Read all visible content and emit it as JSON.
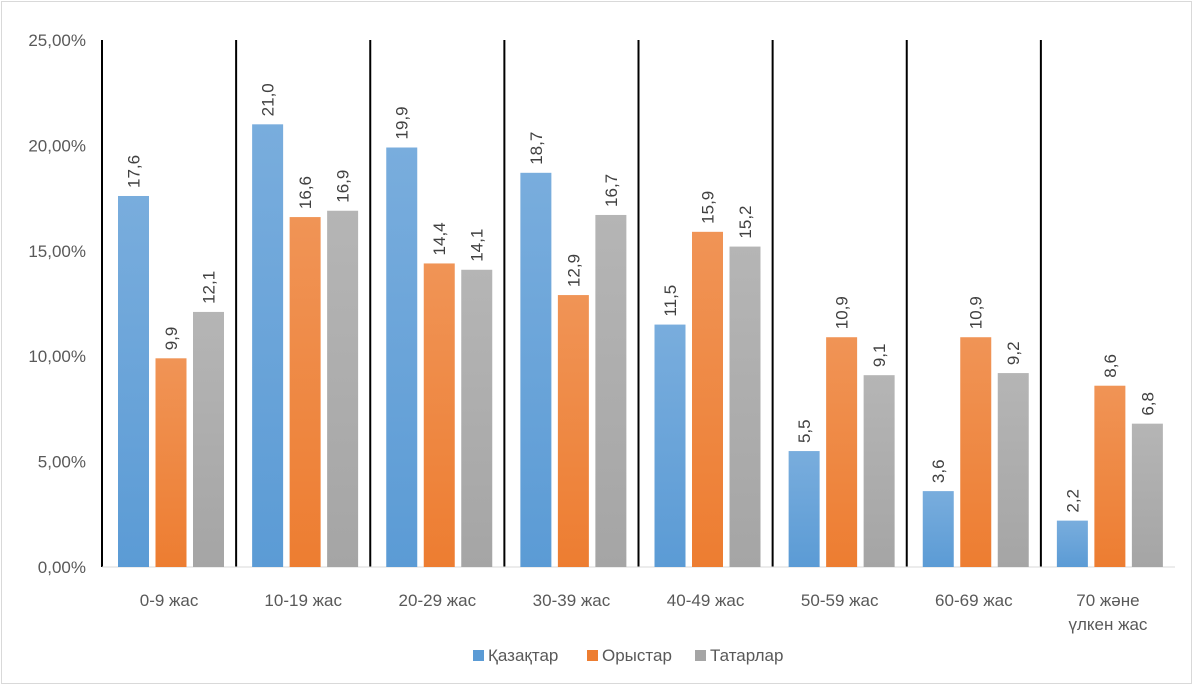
{
  "chart_data": {
    "type": "bar",
    "title": "",
    "xlabel": "",
    "ylabel": "",
    "categories": [
      [
        "0-9 жас"
      ],
      [
        "10-19 жас"
      ],
      [
        "20-29 жас"
      ],
      [
        "30-39 жас"
      ],
      [
        "40-49 жас"
      ],
      [
        "50-59 жас"
      ],
      [
        "60-69 жас"
      ],
      [
        "70 және",
        "үлкен жас"
      ]
    ],
    "series": [
      {
        "name": "Қазақтар",
        "values": [
          17.6,
          21.0,
          19.9,
          18.7,
          11.5,
          5.5,
          3.6,
          2.2
        ],
        "labels": [
          "17,6",
          "21,0",
          "19,9",
          "18,7",
          "11,5",
          "5,5",
          "3,6",
          "2,2"
        ],
        "color": "#5b9bd5"
      },
      {
        "name": "Орыстар",
        "values": [
          9.9,
          16.6,
          14.4,
          12.9,
          15.9,
          10.9,
          10.9,
          8.6
        ],
        "labels": [
          "9,9",
          "16,6",
          "14,4",
          "12,9",
          "15,9",
          "10,9",
          "10,9",
          "8,6"
        ],
        "color": "#ed7d31"
      },
      {
        "name": "Татарлар",
        "values": [
          12.1,
          16.9,
          14.1,
          16.7,
          15.2,
          9.1,
          9.2,
          6.8
        ],
        "labels": [
          "12,1",
          "16,9",
          "14,1",
          "16,7",
          "15,2",
          "9,1",
          "9,2",
          "6,8"
        ],
        "color": "#a5a5a5"
      }
    ],
    "ylim": [
      0,
      25
    ],
    "yticks": [
      {
        "value": 0,
        "label": "0,00%"
      },
      {
        "value": 5,
        "label": "5,00%"
      },
      {
        "value": 10,
        "label": "10,00%"
      },
      {
        "value": 15,
        "label": "15,00%"
      },
      {
        "value": 20,
        "label": "20,00%"
      },
      {
        "value": 25,
        "label": "25,00%"
      }
    ],
    "grid": false,
    "category_separators": true,
    "legend_position": "bottom"
  }
}
